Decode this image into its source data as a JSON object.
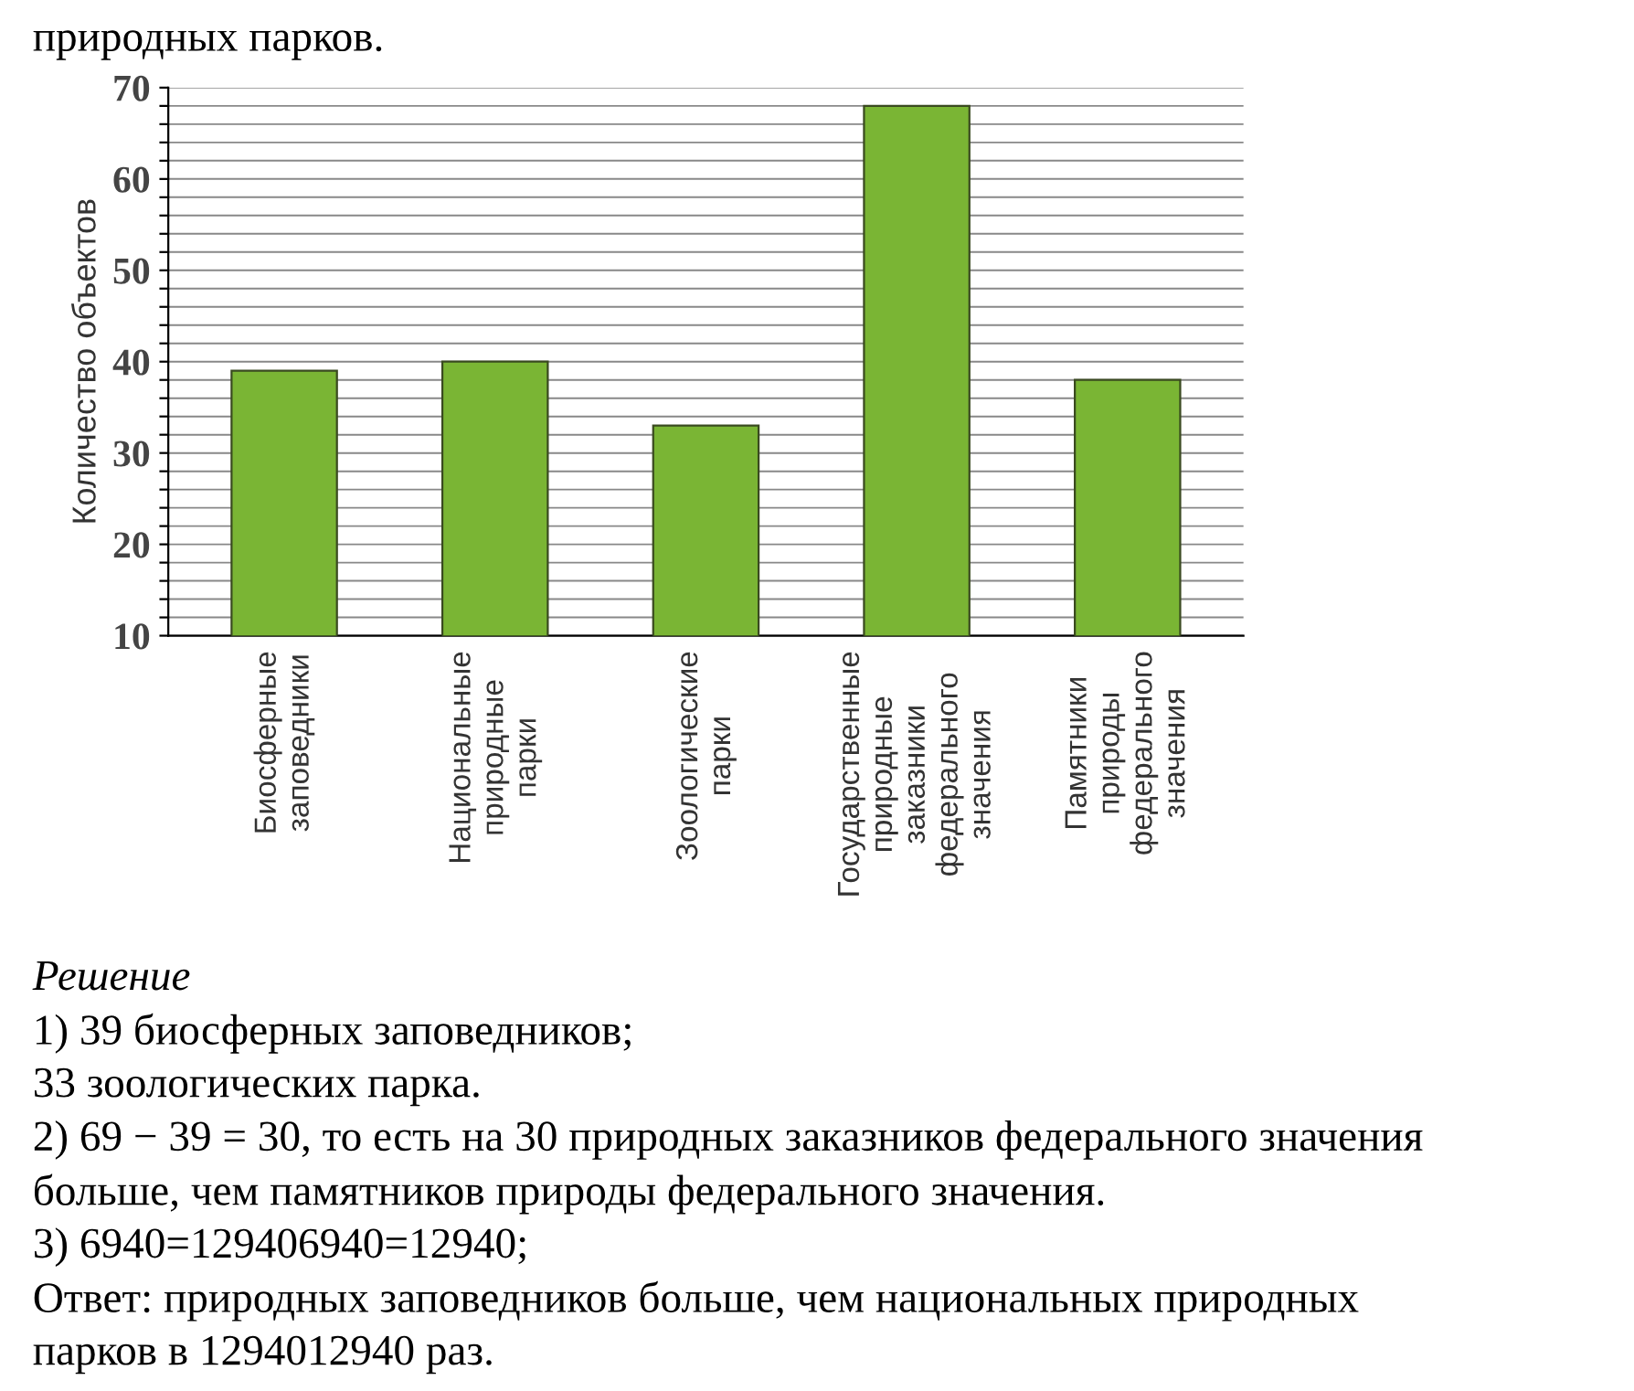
{
  "chart_data": {
    "type": "bar",
    "ylabel": "Количество объектов",
    "categories": [
      "Биосферные\nзаповедники",
      "Национальные\nприродные\nпарки",
      "Зоологические\nпарки",
      "Государственные\nприродные\nзаказники\nфедерального\nзначения",
      "Памятники\nприроды\nфедерального\nзначения"
    ],
    "values": [
      39,
      40,
      33,
      68,
      38
    ],
    "color": "#7ab534",
    "ylim": [
      10,
      70
    ],
    "yticks": [
      10,
      {
        "value": 12,
        "label": null
      },
      {
        "value": 14,
        "label": null
      },
      {
        "value": 16,
        "label": null
      },
      {
        "value": 18,
        "label": null
      },
      20,
      {
        "value": 22,
        "label": null
      },
      {
        "value": 24,
        "label": null
      },
      {
        "value": 26,
        "label": null
      },
      {
        "value": 28,
        "label": null
      },
      30,
      {
        "value": 32,
        "label": null
      },
      {
        "value": 34,
        "label": null
      },
      {
        "value": 36,
        "label": null
      },
      {
        "value": 38,
        "label": null
      },
      40,
      {
        "value": 42,
        "label": null
      },
      {
        "value": 44,
        "label": null
      },
      {
        "value": 46,
        "label": null
      },
      {
        "value": 48,
        "label": null
      },
      50,
      {
        "value": 52,
        "label": null
      },
      {
        "value": 54,
        "label": null
      },
      {
        "value": 56,
        "label": null
      },
      {
        "value": 58,
        "label": null
      },
      60,
      {
        "value": 62,
        "label": null
      },
      {
        "value": 64,
        "label": null
      },
      {
        "value": 66,
        "label": null
      },
      {
        "value": 68,
        "label": null
      },
      70
    ],
    "grid": "y",
    "annotations": [
      "природных парков.",
      "Решение",
      "1) 39 биосферных заповедников;",
      "33 зоологических парка.",
      "2) 69 − 39 = 30, то есть на 30 природных заказников федерального значения",
      "больше, чем памятников природы федерального значения.",
      "3) 6940=129406940=12940;",
      "Ответ: природных заповедников больше, чем национальных природных",
      "парков в 1294012940 раз."
    ]
  }
}
